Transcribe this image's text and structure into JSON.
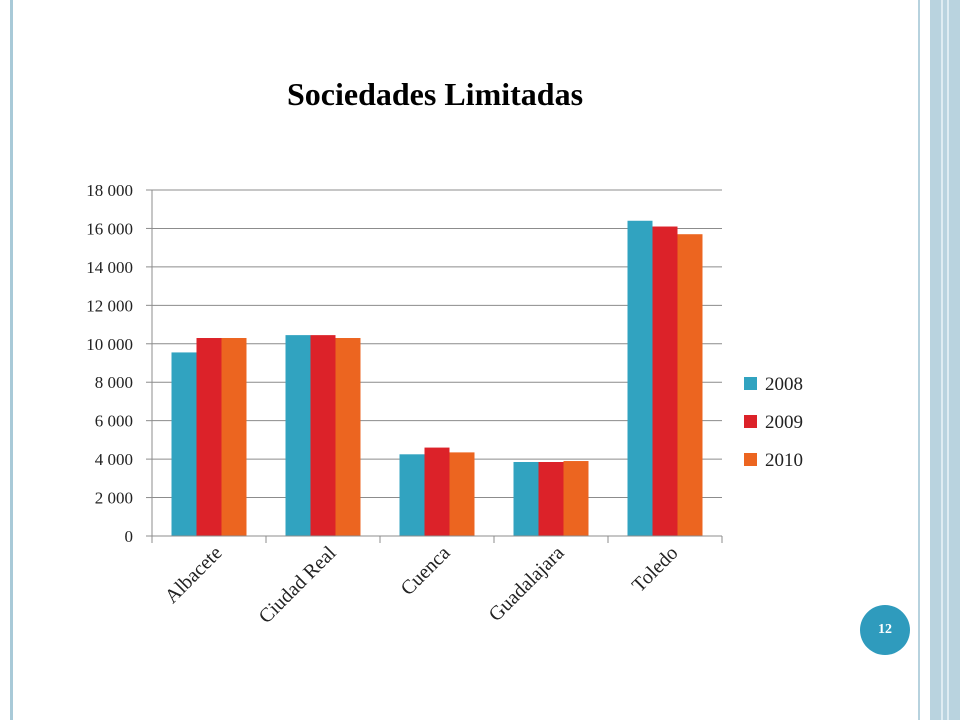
{
  "page_number": "12",
  "colors": {
    "2008": "#31a3c0",
    "2009": "#dc2229",
    "2010": "#ec6520",
    "accent": "#2f9bbd"
  },
  "chart_data": {
    "type": "bar",
    "title": "Sociedades Limitadas",
    "xlabel": "",
    "ylabel": "",
    "categories": [
      "Albacete",
      "Ciudad Real",
      "Cuenca",
      "Guadalajara",
      "Toledo"
    ],
    "series": [
      {
        "name": "2008",
        "values": [
          9550,
          10450,
          4250,
          3850,
          16400
        ]
      },
      {
        "name": "2009",
        "values": [
          10300,
          10450,
          4600,
          3850,
          16100
        ]
      },
      {
        "name": "2010",
        "values": [
          10300,
          10300,
          4350,
          3900,
          15700
        ]
      }
    ],
    "ylim": [
      0,
      18000
    ],
    "yticks": [
      0,
      2000,
      4000,
      6000,
      8000,
      10000,
      12000,
      14000,
      16000,
      18000
    ],
    "ytick_labels": [
      "0",
      "2 000",
      "4 000",
      "6 000",
      "8 000",
      "10 000",
      "12 000",
      "14 000",
      "16 000",
      "18 000"
    ],
    "grid": true,
    "legend_position": "right"
  }
}
